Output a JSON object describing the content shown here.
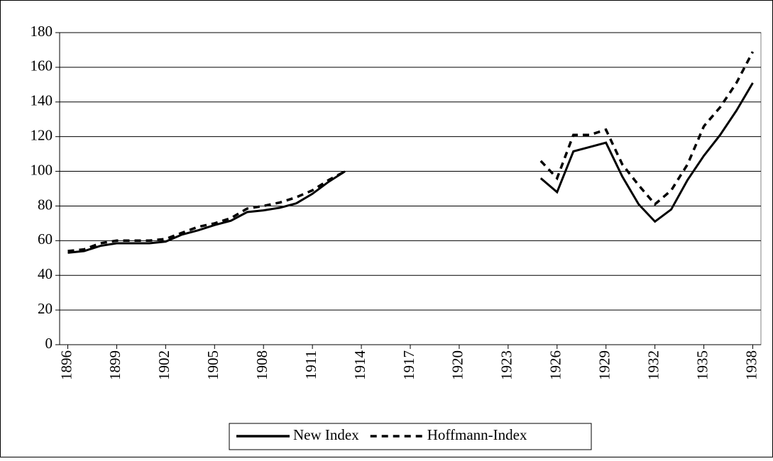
{
  "chart_data": {
    "type": "line",
    "x": [
      1896,
      1897,
      1898,
      1899,
      1900,
      1901,
      1902,
      1903,
      1904,
      1905,
      1906,
      1907,
      1908,
      1909,
      1910,
      1911,
      1912,
      1913,
      1914,
      1915,
      1916,
      1917,
      1918,
      1919,
      1920,
      1921,
      1922,
      1923,
      1924,
      1925,
      1926,
      1927,
      1928,
      1929,
      1930,
      1931,
      1932,
      1933,
      1934,
      1935,
      1936,
      1937,
      1938
    ],
    "series": [
      {
        "name": "New Index",
        "color": "#000000",
        "dash": "solid",
        "values": [
          53,
          54,
          57,
          58.5,
          58.5,
          58.5,
          59.5,
          63.5,
          66,
          69,
          71.5,
          76.5,
          77.5,
          79,
          81.5,
          87,
          94,
          100,
          null,
          null,
          null,
          null,
          null,
          null,
          null,
          null,
          null,
          null,
          null,
          96,
          88,
          111.5,
          114,
          116.5,
          97,
          81,
          71,
          78,
          95,
          109,
          121,
          135,
          151
        ]
      },
      {
        "name": "Hoffmann-Index",
        "color": "#000000",
        "dash": "dashed",
        "values": [
          54,
          55,
          58.5,
          60,
          60,
          60,
          61,
          64.5,
          68,
          70,
          73,
          78.5,
          80,
          82,
          85,
          89,
          95,
          100,
          null,
          null,
          null,
          null,
          null,
          null,
          null,
          null,
          null,
          null,
          null,
          106,
          96,
          121,
          121,
          124,
          104,
          92,
          81,
          89,
          104,
          126,
          137,
          151,
          169
        ]
      }
    ],
    "xlim": [
      1895.5,
      1938.5
    ],
    "xticks": [
      1896,
      1899,
      1902,
      1905,
      1908,
      1911,
      1914,
      1917,
      1920,
      1923,
      1926,
      1929,
      1932,
      1935,
      1938
    ],
    "ylim": [
      0,
      180
    ],
    "yticks": [
      0,
      20,
      40,
      60,
      80,
      100,
      120,
      140,
      160,
      180
    ],
    "grid": true,
    "legend": "bottom"
  }
}
